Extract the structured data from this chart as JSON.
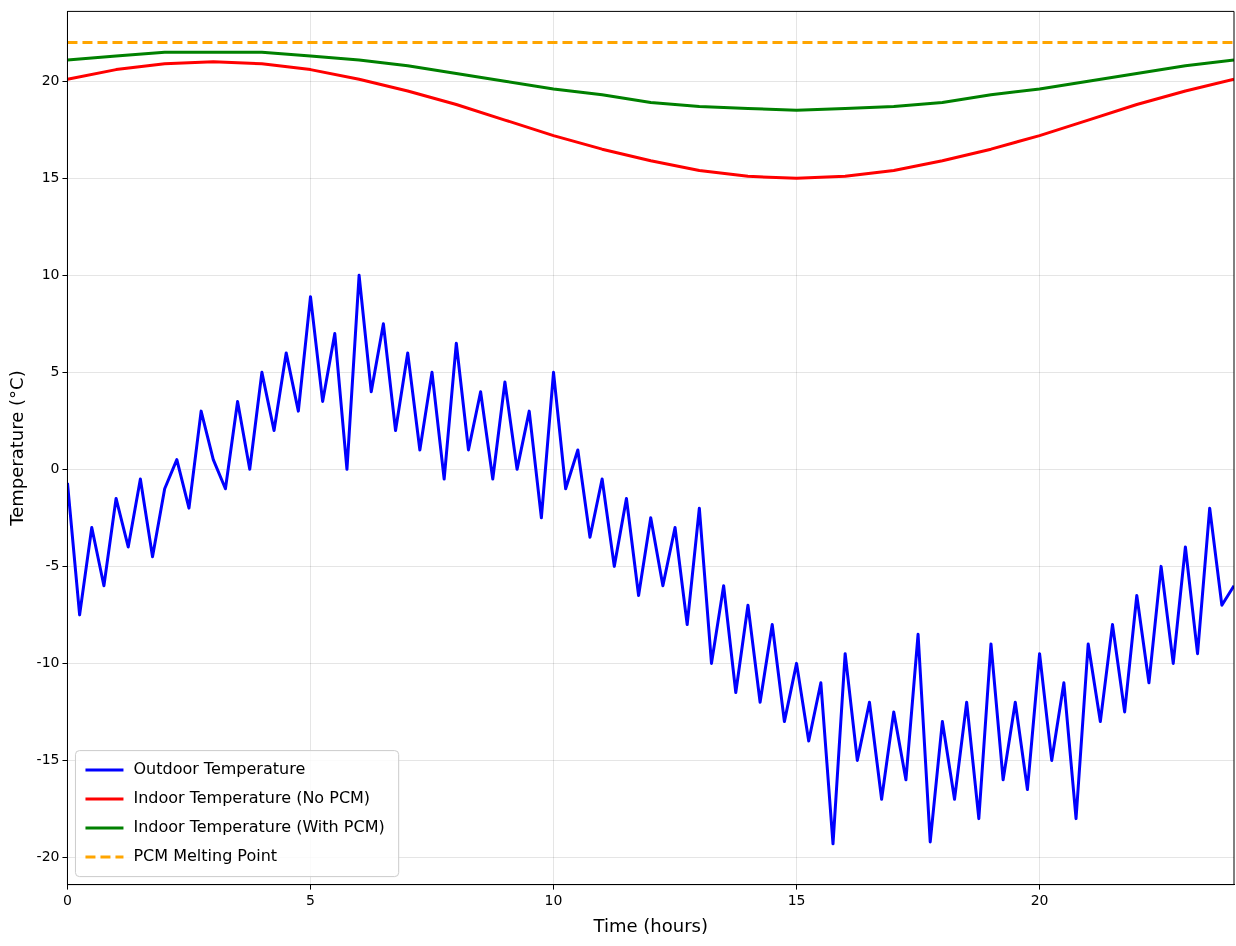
{
  "chart_data": {
    "type": "line",
    "xlabel": "Time (hours)",
    "ylabel": "Temperature (°C)",
    "xlim": [
      0,
      24
    ],
    "xticks": [
      0,
      5,
      10,
      15,
      20
    ],
    "ylim": [
      -21.4,
      23.6
    ],
    "yticks": [
      -20,
      -15,
      -10,
      -5,
      0,
      5,
      10,
      15,
      20
    ],
    "grid": true,
    "legend": "bottom left",
    "marker": "none",
    "line_style": "solid",
    "series": [
      {
        "name": "Outdoor Temperature",
        "color": "#0000ff",
        "x": [
          0,
          0.25,
          0.5,
          0.75,
          1,
          1.25,
          1.5,
          1.75,
          2,
          2.25,
          2.5,
          2.75,
          3,
          3.25,
          3.5,
          3.75,
          4,
          4.25,
          4.5,
          4.75,
          5,
          5.25,
          5.5,
          5.75,
          6,
          6.25,
          6.5,
          6.75,
          7,
          7.25,
          7.5,
          7.75,
          8,
          8.25,
          8.5,
          8.75,
          9,
          9.25,
          9.5,
          9.75,
          10,
          10.25,
          10.5,
          10.75,
          11,
          11.25,
          11.5,
          11.75,
          12,
          12.25,
          12.5,
          12.75,
          13,
          13.25,
          13.5,
          13.75,
          14,
          14.25,
          14.5,
          14.75,
          15,
          15.25,
          15.5,
          15.75,
          16,
          16.25,
          16.5,
          16.75,
          17,
          17.25,
          17.5,
          17.75,
          18,
          18.25,
          18.5,
          18.75,
          19,
          19.25,
          19.5,
          19.75,
          20,
          20.25,
          20.5,
          20.75,
          21,
          21.25,
          21.5,
          21.75,
          22,
          22.25,
          22.5,
          22.75,
          23,
          23.25,
          23.5,
          23.75,
          24
        ],
        "values": [
          -0.7,
          -7.5,
          -3,
          -6,
          -1.5,
          -4,
          -0.5,
          -4.5,
          -1,
          0.5,
          -2,
          3,
          0.5,
          -1,
          3.5,
          0,
          5,
          2,
          6,
          3,
          8.9,
          3.5,
          7,
          0,
          10,
          4,
          7.5,
          2,
          6,
          1,
          5,
          -0.5,
          6.5,
          1,
          4,
          -0.5,
          4.5,
          0,
          3,
          -2.5,
          5,
          -1,
          1,
          -3.5,
          -0.5,
          -5,
          -1.5,
          -6.5,
          -2.5,
          -6,
          -3,
          -8,
          -2,
          -10,
          -6,
          -11.5,
          -7,
          -12,
          -8,
          -13,
          -10,
          -14,
          -11,
          -19.3,
          -9.5,
          -15,
          -12,
          -17,
          -12.5,
          -16,
          -8.5,
          -19.2,
          -13,
          -17,
          -12,
          -18,
          -9,
          -16,
          -12,
          -16.5,
          -9.5,
          -15,
          -11,
          -18,
          -9,
          -13,
          -8,
          -12.5,
          -6.5,
          -11,
          -5,
          -10,
          -4,
          -9.5,
          -2,
          -7,
          -6
        ]
      },
      {
        "name": "Indoor Temperature (No PCM)",
        "color": "#ff0000",
        "x": [
          0,
          1,
          2,
          3,
          4,
          5,
          6,
          7,
          8,
          9,
          10,
          11,
          12,
          13,
          14,
          15,
          16,
          17,
          18,
          19,
          20,
          21,
          22,
          23,
          24
        ],
        "values": [
          20.1,
          20.6,
          20.9,
          21,
          20.9,
          20.6,
          20.1,
          19.5,
          18.8,
          18,
          17.2,
          16.5,
          15.9,
          15.4,
          15.1,
          15,
          15.1,
          15.4,
          15.9,
          16.5,
          17.2,
          18,
          18.8,
          19.5,
          20.1
        ]
      },
      {
        "name": "Indoor Temperature (With PCM)",
        "color": "#008000",
        "x": [
          0,
          1,
          2,
          3,
          4,
          5,
          6,
          7,
          8,
          9,
          10,
          11,
          12,
          13,
          14,
          15,
          16,
          17,
          18,
          19,
          20,
          21,
          22,
          23,
          24
        ],
        "values": [
          21.1,
          21.3,
          21.5,
          21.5,
          21.5,
          21.3,
          21.1,
          20.8,
          20.4,
          20,
          19.6,
          19.3,
          18.9,
          18.7,
          18.6,
          18.5,
          18.6,
          18.7,
          18.9,
          19.3,
          19.6,
          20,
          20.4,
          20.8,
          21.1
        ]
      }
    ],
    "ref_lines": [
      {
        "axis": "y",
        "value": 22,
        "label": "PCM Melting Point",
        "color": "#ffa500",
        "line_style": "dashed"
      }
    ]
  }
}
